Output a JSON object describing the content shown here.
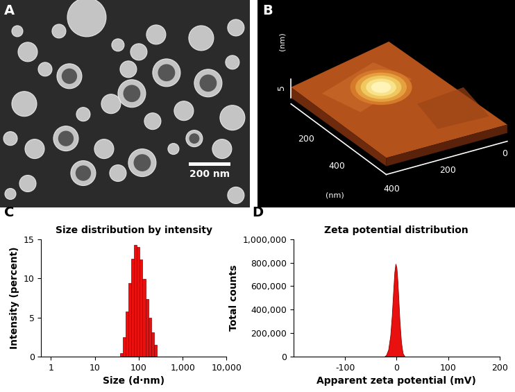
{
  "panels": [
    {
      "label": "A",
      "type": "image",
      "scale_bar": "200 nm"
    },
    {
      "label": "B",
      "type": "image",
      "z_axis": {
        "tick": "5",
        "unit": "(nm)"
      },
      "x_axis": {
        "ticks": [
          "0",
          "200",
          "400"
        ],
        "unit": "(nm)"
      },
      "y_axis": {
        "ticks": [
          "200",
          "400"
        ]
      }
    }
  ],
  "chart_data": [
    {
      "type": "histogram",
      "title": "Size distribution by intensity",
      "annotations": [
        "C"
      ],
      "x_label": "Size (d·nm)",
      "y_label": "Intensity (percent)",
      "bins": [
        37.84,
        43.82,
        50.75,
        58.77,
        68.06,
        78.82,
        91.28,
        105.7,
        122.4,
        141.8,
        164.2,
        190.1,
        220.2,
        255.0
      ],
      "counts": [
        0.5,
        2.5,
        5.8,
        9.4,
        12.5,
        14.3,
        14.0,
        12.4,
        9.9,
        7.4,
        5.0,
        3.1,
        1.5
      ],
      "color": "#e8110f",
      "log": "x",
      "xlim": [
        0.6,
        10000
      ],
      "xticks": [
        1,
        10,
        100,
        {
          "value": 1000,
          "label": "1,000"
        },
        {
          "value": 10000,
          "label": "10,000"
        }
      ],
      "ylim": [
        0,
        15
      ],
      "yticks": [
        0,
        5,
        10,
        15
      ]
    },
    {
      "type": "area",
      "title": "Zeta potential distribution",
      "annotations": [
        "D"
      ],
      "x_label": "Apparent zeta potential (mV)",
      "y_label": "Total counts",
      "x": [
        -24,
        -20,
        -16,
        -12,
        -9,
        -6,
        -4,
        -2,
        0,
        2,
        4,
        6,
        9,
        12,
        16
      ],
      "values": [
        0,
        15000,
        60000,
        180000,
        350000,
        580000,
        720000,
        790000,
        760000,
        640000,
        470000,
        300000,
        120000,
        30000,
        0
      ],
      "color": "#e8110f",
      "xlim": [
        -200,
        200
      ],
      "xticks": [
        -100,
        0,
        100,
        200
      ],
      "ylim": [
        0,
        1000000
      ],
      "yticks": [
        0,
        {
          "value": 200000,
          "label": "200,000"
        },
        {
          "value": 400000,
          "label": "400,000"
        },
        {
          "value": 600000,
          "label": "600,000"
        },
        {
          "value": 800000,
          "label": "800,000"
        },
        {
          "value": 1000000,
          "label": "1,000,000"
        }
      ]
    }
  ]
}
